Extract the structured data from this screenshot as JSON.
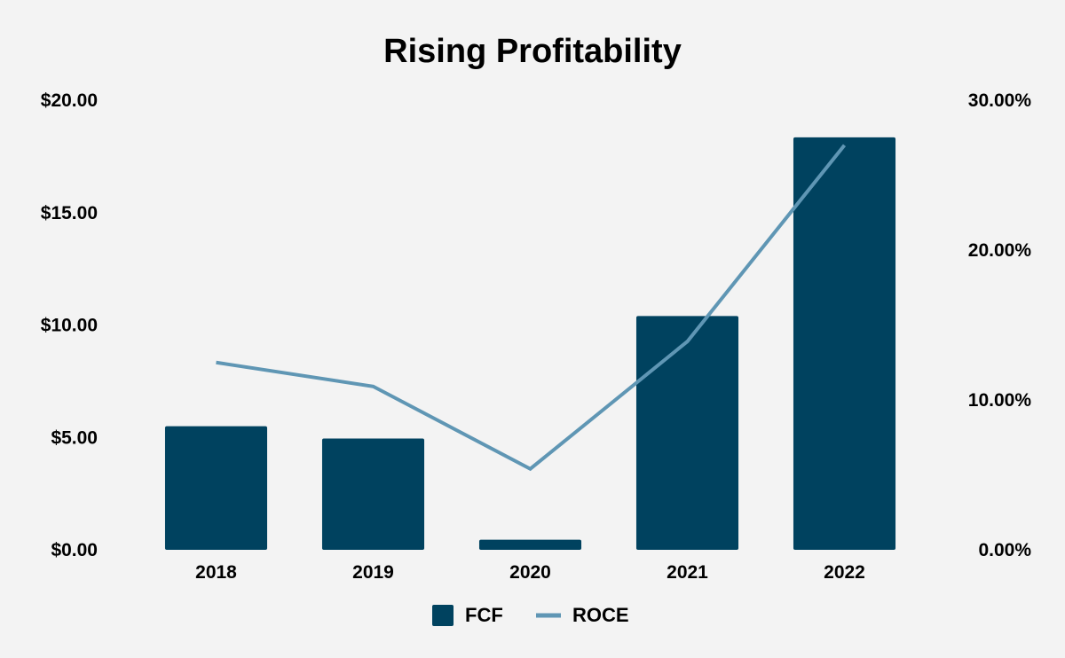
{
  "chart_data": {
    "type": "bar",
    "title": "Rising Profitability",
    "categories": [
      "2018",
      "2019",
      "2020",
      "2021",
      "2022"
    ],
    "series": [
      {
        "name": "FCF",
        "type": "bar",
        "axis": "left",
        "color": "#00425f",
        "values": [
          5.5,
          4.95,
          0.45,
          10.4,
          18.35
        ]
      },
      {
        "name": "ROCE",
        "type": "line",
        "axis": "right",
        "color": "#5f96b4",
        "values": [
          12.5,
          10.9,
          5.4,
          13.9,
          27.0
        ]
      }
    ],
    "y_left": {
      "ylim": [
        0,
        20
      ],
      "ticks": [
        0,
        5,
        10,
        15,
        20
      ],
      "tick_labels": [
        "$0.00",
        "$5.00",
        "$10.00",
        "$15.00",
        "$20.00"
      ]
    },
    "y_right": {
      "ylim": [
        0,
        30
      ],
      "ticks": [
        0,
        10,
        20,
        30
      ],
      "tick_labels": [
        "0.00%",
        "10.00%",
        "20.00%",
        "30.00%"
      ]
    },
    "grid": false,
    "legend": "bottom-center",
    "background": "#f3f3f3"
  }
}
